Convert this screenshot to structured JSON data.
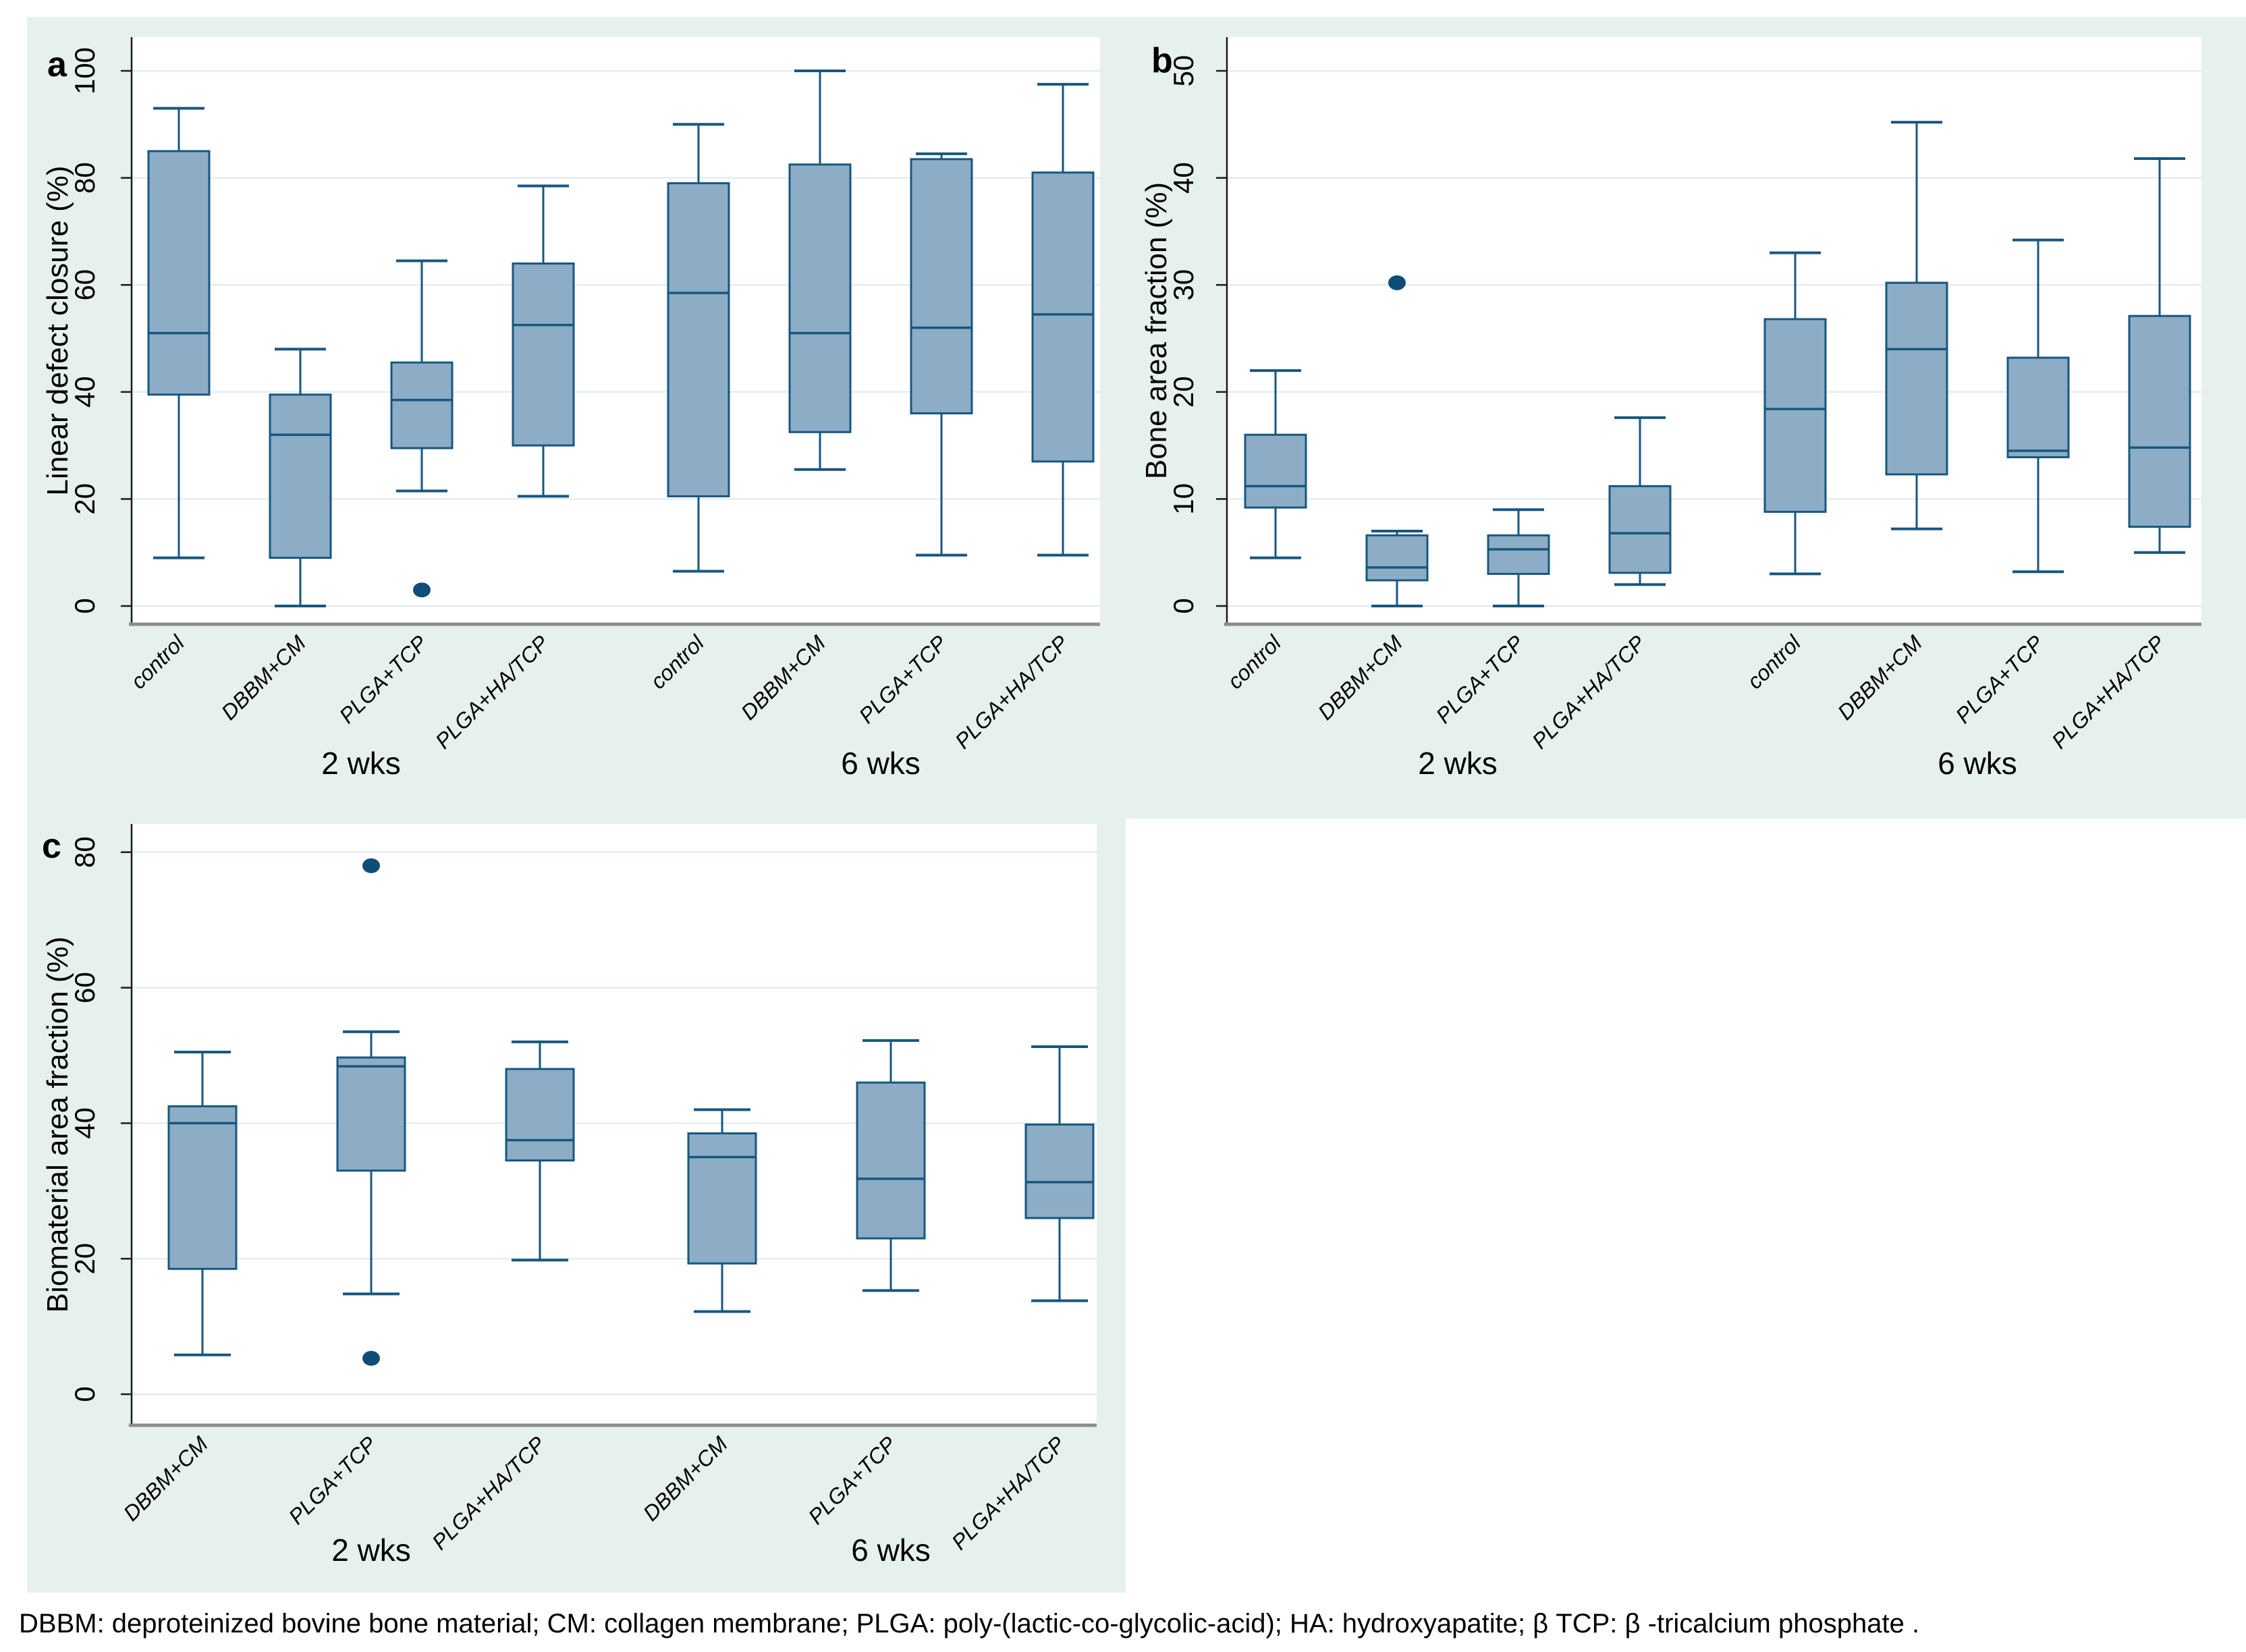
{
  "figure": {
    "colors": {
      "panel_bg": "#e6f0ef",
      "plot_bg": "#ffffff",
      "grid": "#dde9f1",
      "box_fill": "#8dacc5",
      "box_stroke": "#17577f",
      "outlier": "#0f4d77",
      "y_axis": "#1a1a1a",
      "x_axis": "#8c8c8c",
      "text": "#000000"
    },
    "group_labels": [
      "2 wks",
      "6 wks"
    ]
  },
  "caption": "DBBM: deproteinized bovine bone material; CM: collagen membrane; PLGA: poly-(lactic-co-glycolic-acid); HA: hydroxyapatite; β TCP: β -tricalcium phosphate .",
  "chart_data": [
    {
      "type": "box",
      "panel_label": "a",
      "ylabel": "Linear defect closure (%)",
      "ylim": [
        0,
        100
      ],
      "yticks": [
        0,
        20,
        40,
        60,
        80,
        100
      ],
      "grid": true,
      "categories": [
        "control",
        "DBBM+CM",
        "PLGA+TCP",
        "PLGA+HA/TCP"
      ],
      "groups": [
        "2 wks",
        "6 wks"
      ],
      "boxes": [
        {
          "group": "2 wks",
          "label": "control",
          "low": 9,
          "q1": 39.5,
          "median": 51,
          "q3": 85,
          "high": 93,
          "outliers": []
        },
        {
          "group": "2 wks",
          "label": "DBBM+CM",
          "low": 0,
          "q1": 9,
          "median": 32,
          "q3": 39.5,
          "high": 48,
          "outliers": []
        },
        {
          "group": "2 wks",
          "label": "PLGA+TCP",
          "low": 21.5,
          "q1": 29.5,
          "median": 38.5,
          "q3": 45.5,
          "high": 64.5,
          "outliers": [
            3
          ]
        },
        {
          "group": "2 wks",
          "label": "PLGA+HA/TCP",
          "low": 20.5,
          "q1": 30,
          "median": 52.5,
          "q3": 64,
          "high": 78.5,
          "outliers": []
        },
        {
          "group": "6 wks",
          "label": "control",
          "low": 6.5,
          "q1": 20.5,
          "median": 58.5,
          "q3": 79,
          "high": 90,
          "outliers": []
        },
        {
          "group": "6 wks",
          "label": "DBBM+CM",
          "low": 25.5,
          "q1": 32.5,
          "median": 51,
          "q3": 82.5,
          "high": 100,
          "outliers": []
        },
        {
          "group": "6 wks",
          "label": "PLGA+TCP",
          "low": 9.5,
          "q1": 36,
          "median": 52,
          "q3": 83.5,
          "high": 84.5,
          "outliers": []
        },
        {
          "group": "6 wks",
          "label": "PLGA+HA/TCP",
          "low": 9.5,
          "q1": 27,
          "median": 54.5,
          "q3": 81,
          "high": 97.5,
          "outliers": []
        }
      ]
    },
    {
      "type": "box",
      "panel_label": "b",
      "ylabel": "Bone area fraction (%)",
      "ylim": [
        0,
        50
      ],
      "yticks": [
        0,
        10,
        20,
        30,
        40,
        50
      ],
      "grid": true,
      "categories": [
        "control",
        "DBBM+CM",
        "PLGA+TCP",
        "PLGA+HA/TCP"
      ],
      "groups": [
        "2 wks",
        "6 wks"
      ],
      "boxes": [
        {
          "group": "2 wks",
          "label": "control",
          "low": 4.5,
          "q1": 9.2,
          "median": 11.2,
          "q3": 16,
          "high": 22,
          "outliers": []
        },
        {
          "group": "2 wks",
          "label": "DBBM+CM",
          "low": 0,
          "q1": 2.4,
          "median": 3.6,
          "q3": 6.6,
          "high": 7,
          "outliers": [
            30.2
          ]
        },
        {
          "group": "2 wks",
          "label": "PLGA+TCP",
          "low": 0,
          "q1": 3,
          "median": 5.3,
          "q3": 6.6,
          "high": 9,
          "outliers": []
        },
        {
          "group": "2 wks",
          "label": "PLGA+HA/TCP",
          "low": 2,
          "q1": 3.1,
          "median": 6.8,
          "q3": 11.2,
          "high": 17.6,
          "outliers": []
        },
        {
          "group": "6 wks",
          "label": "control",
          "low": 3,
          "q1": 8.8,
          "median": 18.4,
          "q3": 26.8,
          "high": 33,
          "outliers": []
        },
        {
          "group": "6 wks",
          "label": "DBBM+CM",
          "low": 7.2,
          "q1": 12.3,
          "median": 24,
          "q3": 30.2,
          "high": 45.2,
          "outliers": []
        },
        {
          "group": "6 wks",
          "label": "PLGA+TCP",
          "low": 3.2,
          "q1": 13.9,
          "median": 14.5,
          "q3": 23.2,
          "high": 34.2,
          "outliers": []
        },
        {
          "group": "6 wks",
          "label": "PLGA+HA/TCP",
          "low": 5,
          "q1": 7.4,
          "median": 14.8,
          "q3": 27.1,
          "high": 41.8,
          "outliers": []
        }
      ]
    },
    {
      "type": "box",
      "panel_label": "c",
      "ylabel": "Biomaterial area fraction (%)",
      "ylim": [
        0,
        80
      ],
      "yticks": [
        0,
        20,
        40,
        60,
        80
      ],
      "grid": true,
      "categories": [
        "DBBM+CM",
        "PLGA+TCP",
        "PLGA+HA/TCP"
      ],
      "groups": [
        "2 wks",
        "6 wks"
      ],
      "boxes": [
        {
          "group": "2 wks",
          "label": "DBBM+CM",
          "low": 5.8,
          "q1": 18.5,
          "median": 40,
          "q3": 42.5,
          "high": 50.5,
          "outliers": []
        },
        {
          "group": "2 wks",
          "label": "PLGA+TCP",
          "low": 14.8,
          "q1": 33,
          "median": 48.4,
          "q3": 49.7,
          "high": 53.5,
          "outliers": [
            78,
            5.3
          ]
        },
        {
          "group": "2 wks",
          "label": "PLGA+HA/TCP",
          "low": 19.8,
          "q1": 34.5,
          "median": 37.5,
          "q3": 48,
          "high": 52,
          "outliers": []
        },
        {
          "group": "6 wks",
          "label": "DBBM+CM",
          "low": 12.2,
          "q1": 19.3,
          "median": 35,
          "q3": 38.5,
          "high": 42,
          "outliers": []
        },
        {
          "group": "6 wks",
          "label": "PLGA+TCP",
          "low": 15.3,
          "q1": 23,
          "median": 31.8,
          "q3": 46,
          "high": 52.2,
          "outliers": []
        },
        {
          "group": "6 wks",
          "label": "PLGA+HA/TCP",
          "low": 13.8,
          "q1": 26,
          "median": 31.3,
          "q3": 39.8,
          "high": 51.3,
          "outliers": []
        }
      ]
    }
  ]
}
